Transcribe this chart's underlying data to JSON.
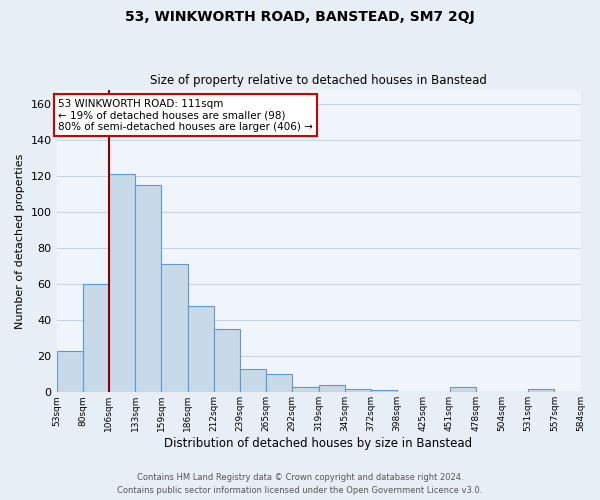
{
  "title": "53, WINKWORTH ROAD, BANSTEAD, SM7 2QJ",
  "subtitle": "Size of property relative to detached houses in Banstead",
  "xlabel": "Distribution of detached houses by size in Banstead",
  "ylabel": "Number of detached properties",
  "bar_values": [
    23,
    60,
    121,
    115,
    71,
    48,
    35,
    13,
    10,
    3,
    4,
    2,
    1,
    0,
    0,
    3,
    0,
    0,
    2,
    0
  ],
  "bar_labels": [
    "53sqm",
    "80sqm",
    "106sqm",
    "133sqm",
    "159sqm",
    "186sqm",
    "212sqm",
    "239sqm",
    "265sqm",
    "292sqm",
    "319sqm",
    "345sqm",
    "372sqm",
    "398sqm",
    "425sqm",
    "451sqm",
    "478sqm",
    "504sqm",
    "531sqm",
    "557sqm",
    "584sqm"
  ],
  "bar_color": "#c8d9e8",
  "bar_edge_color": "#5b9bd5",
  "vline_x_index": 2,
  "vline_color": "#8b0000",
  "annotation_title": "53 WINKWORTH ROAD: 111sqm",
  "annotation_line1": "← 19% of detached houses are smaller (98)",
  "annotation_line2": "80% of semi-detached houses are larger (406) →",
  "annotation_box_edge": "#cc0000",
  "ylim": [
    0,
    168
  ],
  "yticks": [
    0,
    20,
    40,
    60,
    80,
    100,
    120,
    140,
    160
  ],
  "footer_line1": "Contains HM Land Registry data © Crown copyright and database right 2024.",
  "footer_line2": "Contains public sector information licensed under the Open Government Licence v3.0.",
  "bg_color": "#e8eef5",
  "plot_bg_color": "#f0f5fb",
  "grid_color": "#c8d4e0"
}
